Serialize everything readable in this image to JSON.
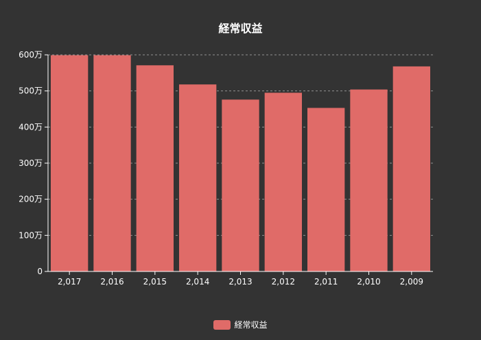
{
  "chart_data": {
    "type": "bar",
    "title": "経常収益",
    "categories": [
      "2,017",
      "2,016",
      "2,015",
      "2,014",
      "2,013",
      "2,012",
      "2,011",
      "2,010",
      "2,009"
    ],
    "series": [
      {
        "name": "経常収益",
        "values": [
          5990000,
          5990000,
          5710000,
          5180000,
          4760000,
          4950000,
          4530000,
          5040000,
          5680000
        ],
        "color": "#e06b68"
      }
    ],
    "ylim": [
      0,
      6000000
    ],
    "yticks": [
      "0",
      "100万",
      "200万",
      "300万",
      "400万",
      "500万",
      "600万"
    ],
    "grid": true,
    "legend_position": "bottom"
  },
  "colors": {
    "background": "#333333",
    "bar": "#e06b68",
    "text": "#ffffff",
    "grid": "#aaaaaa",
    "axis": "#ffffff"
  }
}
